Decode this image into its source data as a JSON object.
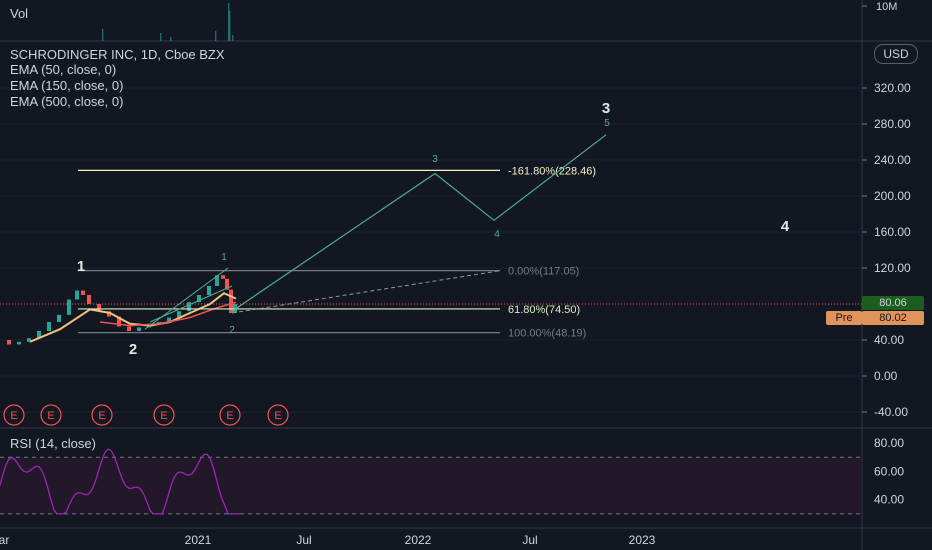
{
  "volume": {
    "label": "Vol",
    "tick": "10M"
  },
  "legend": {
    "symbol": "SCHRODINGER INC, 1D, Cboe BZX",
    "ema1": "EMA (50, close, 0)",
    "ema2": "EMA (150, close, 0)",
    "ema3": "EMA (500, close, 0)"
  },
  "currency_button": "USD",
  "price_tag": "80.06",
  "pre_label": "Pre",
  "pre_tag": "80.02",
  "rsi": {
    "label": "RSI (14, close)",
    "ticks": [
      "80.00",
      "60.00",
      "40.00"
    ]
  },
  "colors": {
    "background": "#131722",
    "price_up": "#26a69a",
    "price_down": "#ef5350",
    "ema50": "#ef5350",
    "ema150": "#f0c27b",
    "rsi_line": "#9c27b0",
    "wave": "#4caf8f",
    "fib_161": "#f5f0c8",
    "fib_618": "#d7f0c0",
    "fib_gray": "#787b86"
  },
  "chart_data": {
    "type": "line",
    "title": "SCHRODINGER INC, 1D, Cboe BZX",
    "y_ticks": [
      "320.00",
      "280.00",
      "240.00",
      "200.00",
      "160.00",
      "120.00",
      "80.00",
      "40.00",
      "0.00",
      "-40.00"
    ],
    "ylim": [
      -55,
      355
    ],
    "x_ticks": [
      "ar",
      "2021",
      "Jul",
      "2022",
      "Jul",
      "2023"
    ],
    "last_price": 80.06,
    "fib_levels": [
      {
        "label": "-161.80%(228.46)",
        "value": 228.46
      },
      {
        "label": "0.00%(117.05)",
        "value": 117.05
      },
      {
        "label": "61.80%(74.50)",
        "value": 74.5
      },
      {
        "label": "100.00%(48.19)",
        "value": 48.19
      }
    ],
    "wave_labels_large": [
      "1",
      "2",
      "3",
      "4"
    ],
    "wave_labels_small": [
      "1",
      "2",
      "3",
      "4",
      "5"
    ],
    "earnings_marker": "E",
    "earnings_count": 6
  }
}
